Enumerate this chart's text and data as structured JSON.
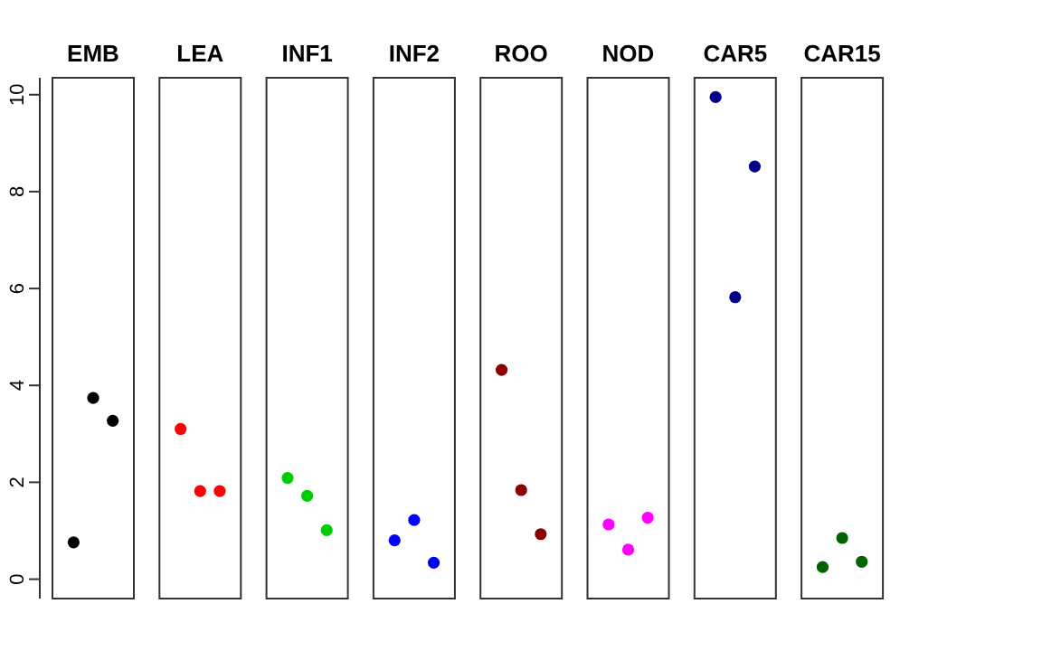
{
  "chart_data": {
    "type": "scatter",
    "categories": [
      "EMB",
      "LEA",
      "INF1",
      "INF2",
      "ROO",
      "NOD",
      "CAR5",
      "CAR15"
    ],
    "ylim": [
      -0.4,
      10.35
    ],
    "yticks": [
      0,
      2,
      4,
      6,
      8,
      10
    ],
    "marker": "circle",
    "series": [
      {
        "color": "#000000",
        "x": [
          "EMB",
          "EMB",
          "EMB"
        ],
        "values": [
          0.76,
          3.74,
          3.27
        ]
      },
      {
        "color": "#ff0000",
        "x": [
          "LEA",
          "LEA",
          "LEA"
        ],
        "values": [
          3.1,
          1.82,
          1.82
        ]
      },
      {
        "color": "#00cd00",
        "x": [
          "INF1",
          "INF1",
          "INF1"
        ],
        "values": [
          2.09,
          1.72,
          1.01
        ]
      },
      {
        "color": "#0000ff",
        "x": [
          "INF2",
          "INF2",
          "INF2"
        ],
        "values": [
          0.8,
          1.22,
          0.34
        ]
      },
      {
        "color": "#8b0000",
        "x": [
          "ROO",
          "ROO",
          "ROO"
        ],
        "values": [
          4.32,
          1.84,
          0.93
        ]
      },
      {
        "color": "#ff00ff",
        "x": [
          "NOD",
          "NOD",
          "NOD"
        ],
        "values": [
          1.13,
          0.61,
          1.27
        ]
      },
      {
        "color": "#00008b",
        "x": [
          "CAR5",
          "CAR5",
          "CAR5"
        ],
        "values": [
          9.95,
          5.82,
          8.52
        ]
      },
      {
        "color": "#006400",
        "x": [
          "CAR15",
          "CAR15",
          "CAR15"
        ],
        "values": [
          0.25,
          0.85,
          0.36
        ]
      }
    ]
  }
}
